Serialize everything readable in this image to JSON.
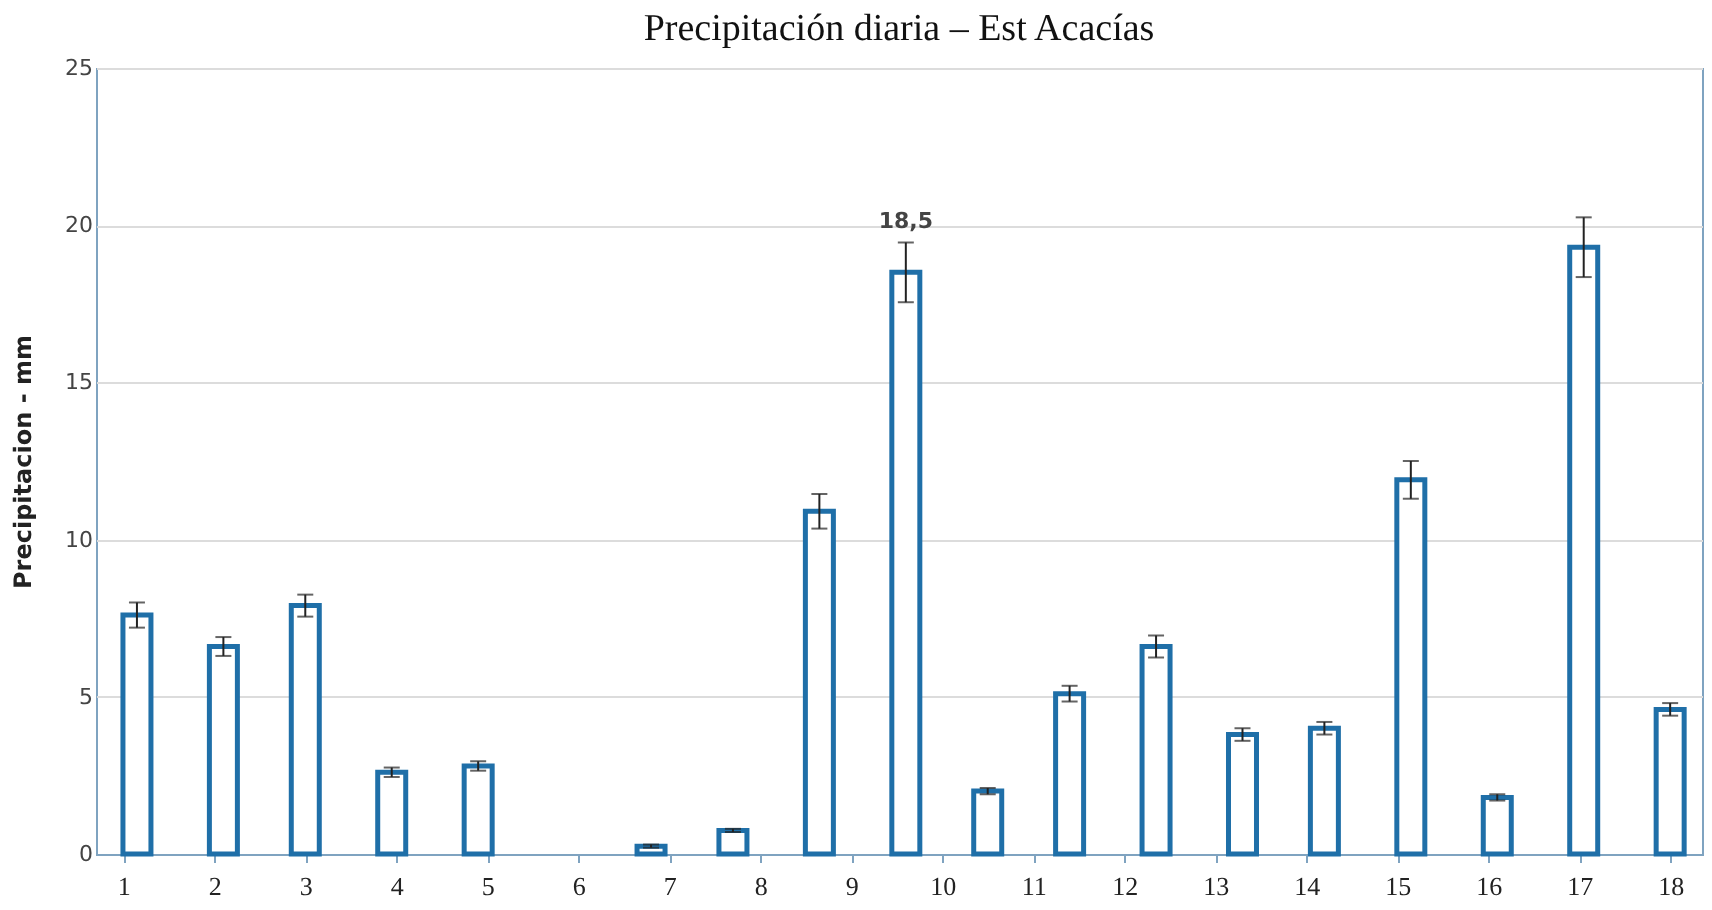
{
  "chart_data": {
    "type": "bar",
    "title": "Precipitación diaria – Est Acacías",
    "ylabel": "Precipitacion - mm",
    "x": [
      1.15,
      2.1,
      3.0,
      3.95,
      4.9,
      5.8,
      6.8,
      7.7,
      8.65,
      9.6,
      10.5,
      11.4,
      12.35,
      13.3,
      14.2,
      15.15,
      16.1,
      17.05,
      18.0
    ],
    "values": [
      7.6,
      6.6,
      7.9,
      2.6,
      2.8,
      null,
      0.25,
      0.75,
      10.9,
      18.5,
      2.0,
      5.1,
      6.6,
      3.8,
      4.0,
      11.9,
      1.8,
      19.3,
      4.6
    ],
    "errors": [
      0.4,
      0.3,
      0.35,
      0.15,
      0.15,
      null,
      0.05,
      0.05,
      0.55,
      0.95,
      0.1,
      0.25,
      0.35,
      0.2,
      0.2,
      0.6,
      0.1,
      0.95,
      0.2
    ],
    "value_labels": [
      null,
      null,
      null,
      null,
      null,
      null,
      null,
      null,
      null,
      "18,5",
      null,
      null,
      null,
      null,
      null,
      null,
      null,
      null,
      null
    ],
    "color": "#1f6fa8",
    "xlim": [
      0.7,
      18.35
    ],
    "xticks": [
      1,
      2,
      3,
      4,
      5,
      6,
      7,
      8,
      9,
      10,
      11,
      12,
      13,
      14,
      15,
      16,
      17,
      18
    ],
    "ylim": [
      0,
      25
    ],
    "yticks": [
      0,
      5,
      10,
      15,
      20,
      25
    ],
    "grid": "y"
  }
}
